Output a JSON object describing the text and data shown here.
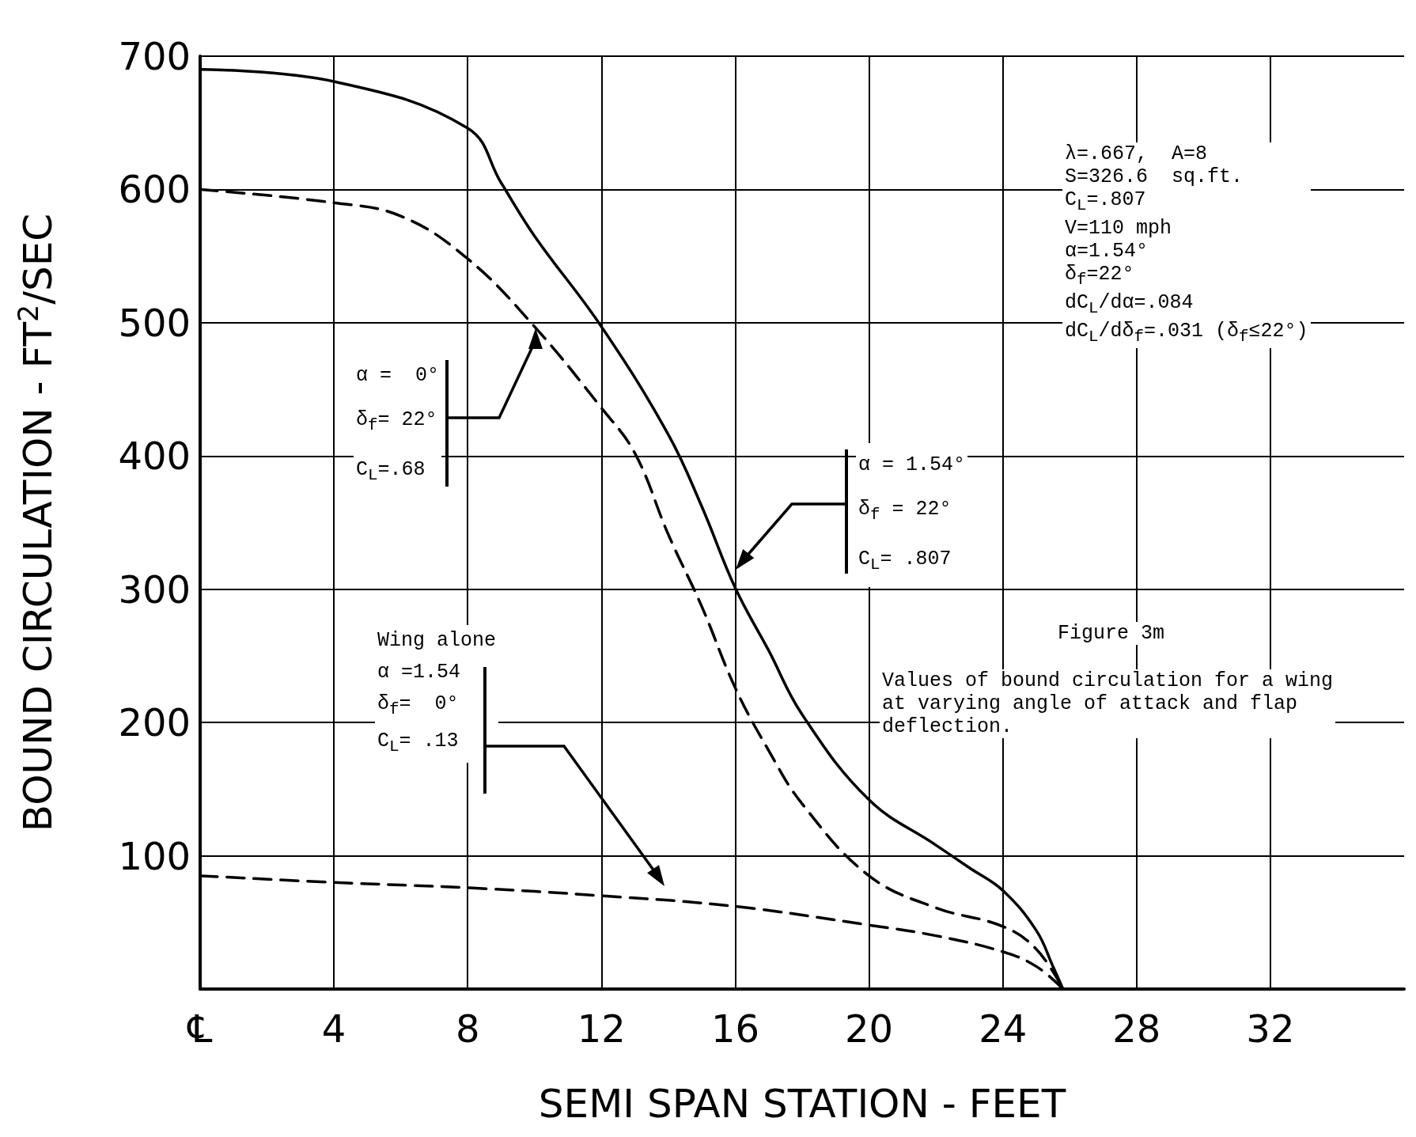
{
  "chart_data": {
    "type": "line",
    "xlabel": "SEMI SPAN STATION - FEET",
    "ylabel": "BOUND CIRCULATION - FT$^{2}$/SEC",
    "xlim": [
      0,
      36
    ],
    "xticks": [
      {
        "value": 0,
        "label": "℄"
      },
      4,
      8,
      12,
      16,
      20,
      24,
      28,
      32
    ],
    "ylim": [
      0,
      700
    ],
    "yticks": [
      100,
      200,
      300,
      400,
      500,
      600,
      700
    ],
    "grid": true,
    "marker": "none",
    "series": [
      {
        "color": "#000000",
        "line_style": "solid",
        "x": [
          0,
          4,
          8,
          9,
          10,
          12,
          14,
          15,
          16,
          17,
          18,
          20,
          22,
          23,
          24,
          25,
          25.5,
          25.8
        ],
        "values": [
          690,
          681,
          646,
          605,
          565,
          497,
          416,
          362,
          301,
          254,
          206,
          142,
          108,
          91,
          74,
          44,
          17,
          0
        ]
      },
      {
        "color": "#000000",
        "line_style": "dashed",
        "x": [
          0,
          4,
          6,
          8,
          10,
          12,
          13,
          14,
          15,
          16,
          17,
          18,
          20,
          22,
          24,
          25,
          25.8
        ],
        "values": [
          600,
          590,
          580,
          548,
          497,
          436,
          402,
          341,
          287,
          226,
          179,
          139,
          85,
          61,
          47,
          30,
          0
        ]
      },
      {
        "color": "#000000",
        "line_style": "dashed",
        "x": [
          0,
          4,
          8,
          12,
          16,
          20,
          22,
          24,
          25,
          25.8
        ],
        "values": [
          85,
          80,
          76,
          70,
          62,
          48,
          40,
          28,
          17,
          0
        ]
      }
    ],
    "annotations": [
      "α =  0°\nδ$_{f}$= 22°\nC$_{L}$=.68",
      "α = 1.54°\nδ$_{f}$ = 22°\nC$_{L}$= .807",
      "Wing alone\nα =1.54\nδ$_{f}$=  0°\nC$_{L}$= .13",
      "λ=.667,  A=8\nS=326.6  sq.ft.\nC$_{L}$=.807\nV=110 mph\nα=1.54°\nδ$_{f}$=22°\ndC$_{L}$/dα=.084\ndC$_{L}$/dδ$_{f}$=.031 (δ$_{f}$≤22°)",
      "Figure 3m",
      "Values of bound circulation for a wing\nat varying angle of attack and flap\ndeflection."
    ]
  }
}
